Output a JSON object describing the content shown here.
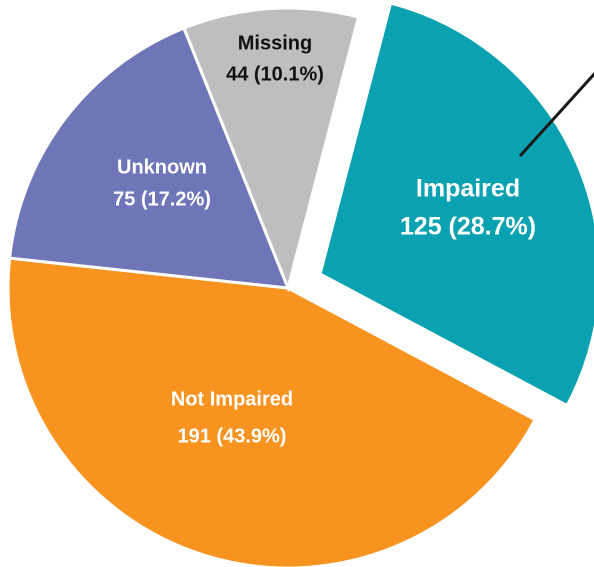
{
  "chart_data": {
    "type": "pie",
    "categories": [
      "Impaired",
      "Not Impaired",
      "Unknown",
      "Missing"
    ],
    "values": [
      125,
      191,
      75,
      44
    ],
    "value_labels": [
      "125 (28.7%)",
      "191 (43.9%)",
      "75 (17.2%)",
      "44 (10.1%)"
    ],
    "colors": [
      "#0aa1b0",
      "#f7931e",
      "#6e76b8",
      "#bdbebf"
    ]
  }
}
